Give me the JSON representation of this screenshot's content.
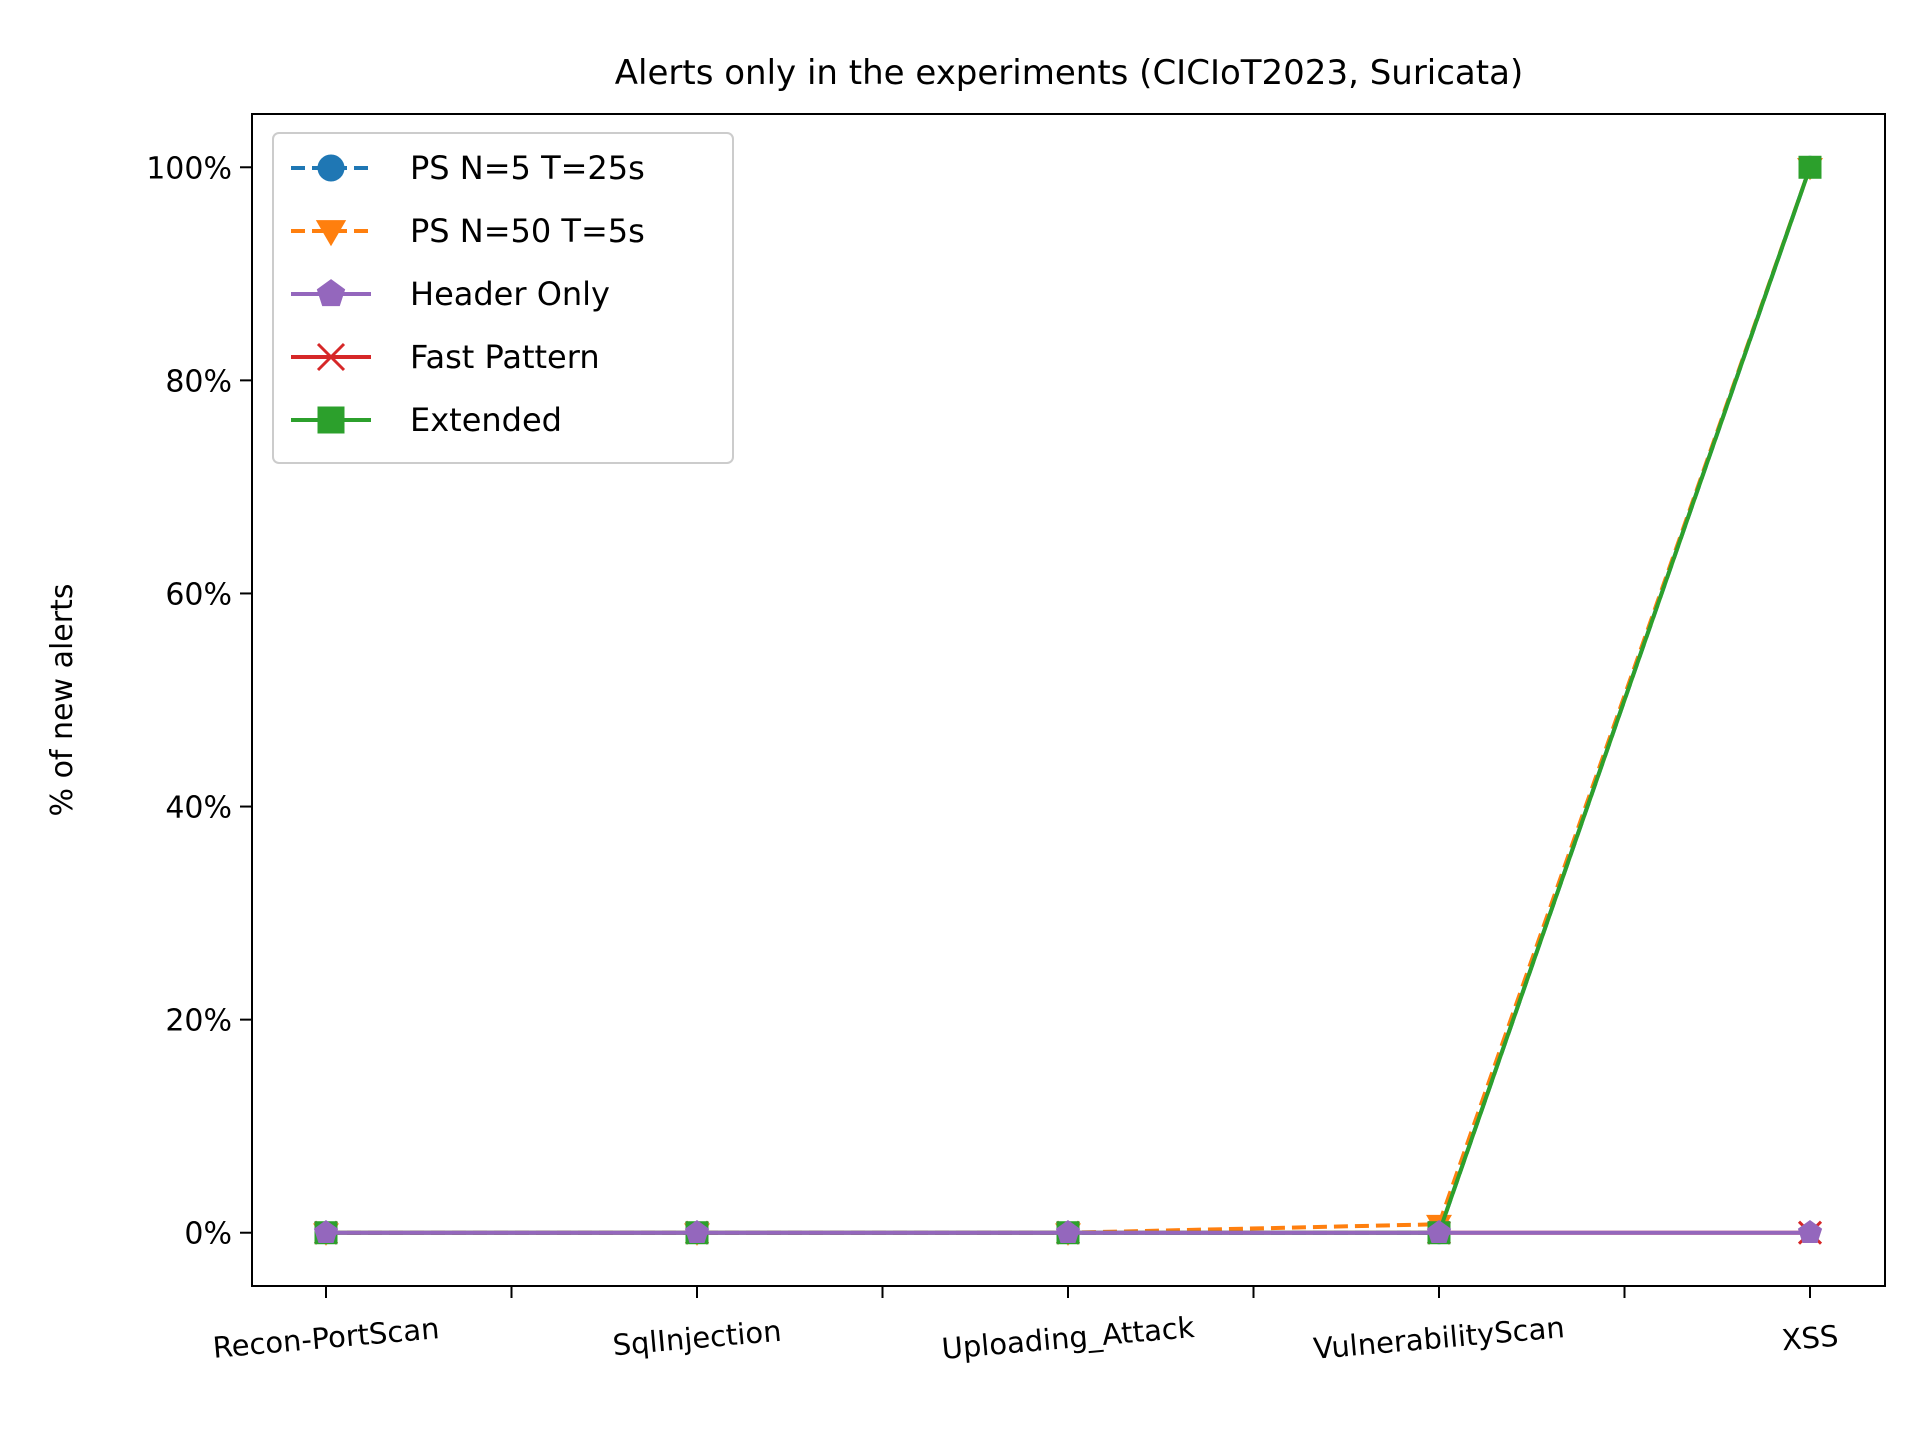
{
  "chart_data": {
    "type": "line",
    "title": "Alerts only in the experiments (CICIoT2023, Suricata)",
    "xlabel": "",
    "ylabel": "% of new alerts",
    "categories": [
      "Recon-PortScan",
      "SqlInjection",
      "Uploading_Attack",
      "VulnerabilityScan",
      "XSS"
    ],
    "ylim": [
      -5,
      105
    ],
    "yticks": [
      0,
      20,
      40,
      60,
      80,
      100
    ],
    "ytick_labels": [
      "0%",
      "20%",
      "40%",
      "60%",
      "80%",
      "100%"
    ],
    "grid": false,
    "legend_position": "top-left",
    "series": [
      {
        "name": "PS N=5 T=25s",
        "values": [
          0,
          0,
          0,
          0,
          100
        ],
        "color": "#1f77b4",
        "marker": "circle",
        "linestyle": "dashed"
      },
      {
        "name": "PS N=50 T=5s",
        "values": [
          0,
          0,
          0,
          0.8,
          100
        ],
        "color": "#ff7f0e",
        "marker": "triangle-down",
        "linestyle": "dashed"
      },
      {
        "name": "Header Only",
        "values": [
          0,
          0,
          0,
          0,
          0
        ],
        "color": "#9467bd",
        "marker": "pentagon",
        "linestyle": "solid"
      },
      {
        "name": "Fast Pattern",
        "values": [
          0,
          0,
          0,
          0,
          0
        ],
        "color": "#d62728",
        "marker": "x",
        "linestyle": "solid"
      },
      {
        "name": "Extended",
        "values": [
          0,
          0,
          0,
          0,
          100
        ],
        "color": "#2ca02c",
        "marker": "square",
        "linestyle": "solid"
      }
    ]
  }
}
